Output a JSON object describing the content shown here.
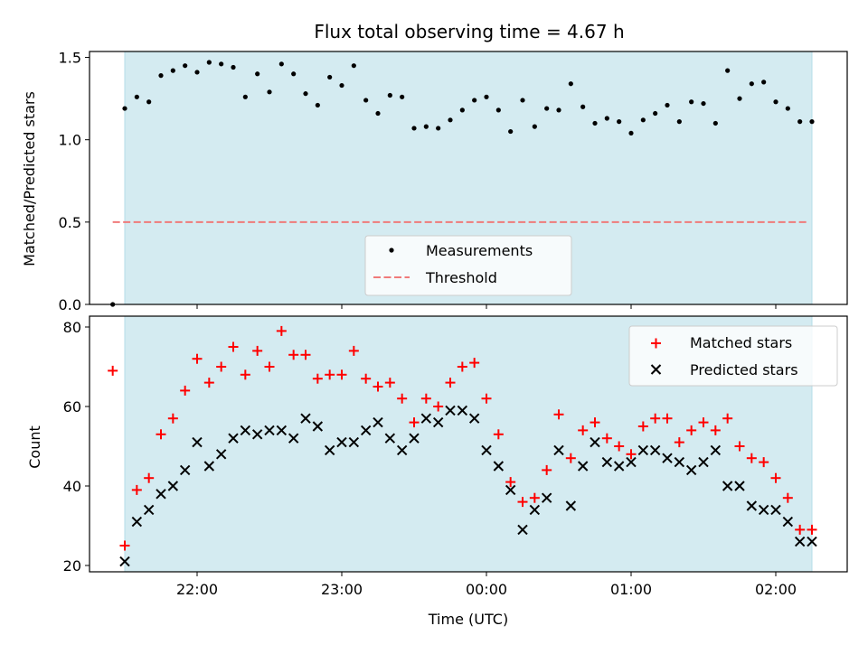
{
  "chart_data": [
    {
      "type": "scatter",
      "title": "Flux total observing time = 4.67 h",
      "ylabel": "Matched/Predicted stars",
      "xlabel": "",
      "ylim": [
        0,
        1.55
      ],
      "yticks": [
        "0.0",
        "0.5",
        "1.0",
        "1.5"
      ],
      "shaded_span": [
        "21:30",
        "02:15"
      ],
      "legend_position": "lower-center",
      "threshold": {
        "name": "Threshold",
        "value": 0.5,
        "color": "#f07a7a",
        "style": "dashed",
        "x_range": [
          "21:25",
          "02:13"
        ]
      },
      "series": [
        {
          "name": "Measurements",
          "color": "#000000",
          "marker": "dot",
          "x": [
            "21:25",
            "21:30",
            "21:35",
            "21:40",
            "21:45",
            "21:50",
            "21:55",
            "22:00",
            "22:05",
            "22:10",
            "22:15",
            "22:20",
            "22:25",
            "22:30",
            "22:35",
            "22:40",
            "22:45",
            "22:50",
            "22:55",
            "23:00",
            "23:05",
            "23:10",
            "23:15",
            "23:20",
            "23:25",
            "23:30",
            "23:35",
            "23:40",
            "23:45",
            "23:50",
            "23:55",
            "00:00",
            "00:05",
            "00:10",
            "00:15",
            "00:20",
            "00:25",
            "00:30",
            "00:35",
            "00:40",
            "00:45",
            "00:50",
            "00:55",
            "01:00",
            "01:05",
            "01:10",
            "01:15",
            "01:20",
            "01:25",
            "01:30",
            "01:35",
            "01:40",
            "01:45",
            "01:50",
            "01:55",
            "02:00",
            "02:05",
            "02:10",
            "02:15"
          ],
          "y": [
            0.0,
            1.19,
            1.26,
            1.23,
            1.39,
            1.42,
            1.45,
            1.41,
            1.47,
            1.46,
            1.44,
            1.26,
            1.4,
            1.29,
            1.46,
            1.4,
            1.28,
            1.21,
            1.38,
            1.33,
            1.45,
            1.24,
            1.16,
            1.27,
            1.26,
            1.07,
            1.08,
            1.07,
            1.12,
            1.18,
            1.24,
            1.26,
            1.18,
            1.05,
            1.24,
            1.08,
            1.19,
            1.18,
            1.34,
            1.2,
            1.1,
            1.13,
            1.11,
            1.04,
            1.12,
            1.16,
            1.21,
            1.11,
            1.23,
            1.22,
            1.1,
            1.42,
            1.25,
            1.34,
            1.35,
            1.23,
            1.19,
            1.11,
            1.11
          ]
        }
      ]
    },
    {
      "type": "scatter",
      "title": "",
      "ylabel": "Count",
      "xlabel": "Time (UTC)",
      "ylim": [
        18,
        82
      ],
      "yticks": [
        "20",
        "40",
        "60",
        "80"
      ],
      "xticks": [
        "22:00",
        "23:00",
        "00:00",
        "01:00",
        "02:00"
      ],
      "shaded_span": [
        "21:30",
        "02:15"
      ],
      "legend_position": "upper-right",
      "series": [
        {
          "name": "Matched stars",
          "color": "#ff0000",
          "marker": "plus",
          "x": [
            "21:25",
            "21:30",
            "21:35",
            "21:40",
            "21:45",
            "21:50",
            "21:55",
            "22:00",
            "22:05",
            "22:10",
            "22:15",
            "22:20",
            "22:25",
            "22:30",
            "22:35",
            "22:40",
            "22:45",
            "22:50",
            "22:55",
            "23:00",
            "23:05",
            "23:10",
            "23:15",
            "23:20",
            "23:25",
            "23:30",
            "23:35",
            "23:40",
            "23:45",
            "23:50",
            "23:55",
            "00:00",
            "00:05",
            "00:10",
            "00:15",
            "00:20",
            "00:25",
            "00:30",
            "00:35",
            "00:40",
            "00:45",
            "00:50",
            "00:55",
            "01:00",
            "01:05",
            "01:10",
            "01:15",
            "01:20",
            "01:25",
            "01:30",
            "01:35",
            "01:40",
            "01:45",
            "01:50",
            "01:55",
            "02:00",
            "02:05",
            "02:10",
            "02:15"
          ],
          "y": [
            69,
            25,
            39,
            42,
            53,
            57,
            64,
            72,
            66,
            70,
            75,
            68,
            74,
            70,
            79,
            73,
            73,
            67,
            68,
            68,
            74,
            67,
            65,
            66,
            62,
            56,
            62,
            60,
            66,
            70,
            71,
            62,
            53,
            41,
            36,
            37,
            44,
            58,
            47,
            54,
            56,
            52,
            50,
            48,
            55,
            57,
            57,
            51,
            54,
            56,
            54,
            57,
            50,
            47,
            46,
            42,
            37,
            29,
            29
          ]
        },
        {
          "name": "Predicted stars",
          "color": "#000000",
          "marker": "x",
          "x": [
            "21:30",
            "21:35",
            "21:40",
            "21:45",
            "21:50",
            "21:55",
            "22:00",
            "22:05",
            "22:10",
            "22:15",
            "22:20",
            "22:25",
            "22:30",
            "22:35",
            "22:40",
            "22:45",
            "22:50",
            "22:55",
            "23:00",
            "23:05",
            "23:10",
            "23:15",
            "23:20",
            "23:25",
            "23:30",
            "23:35",
            "23:40",
            "23:45",
            "23:50",
            "23:55",
            "00:00",
            "00:05",
            "00:10",
            "00:15",
            "00:20",
            "00:25",
            "00:30",
            "00:35",
            "00:40",
            "00:45",
            "00:50",
            "00:55",
            "01:00",
            "01:05",
            "01:10",
            "01:15",
            "01:20",
            "01:25",
            "01:30",
            "01:35",
            "01:40",
            "01:45",
            "01:50",
            "01:55",
            "02:00",
            "02:05",
            "02:10",
            "02:15"
          ],
          "y": [
            21,
            31,
            34,
            38,
            40,
            44,
            51,
            45,
            48,
            52,
            54,
            53,
            54,
            54,
            52,
            57,
            55,
            49,
            51,
            51,
            54,
            56,
            52,
            49,
            52,
            57,
            56,
            59,
            59,
            57,
            49,
            45,
            39,
            29,
            34,
            37,
            49,
            35,
            45,
            51,
            46,
            45,
            46,
            49,
            49,
            47,
            46,
            44,
            46,
            49,
            40,
            40,
            35,
            34,
            34,
            31,
            26,
            26
          ]
        }
      ]
    }
  ],
  "colors": {
    "span": "#d4ebf1",
    "span_edge": "#b4dde8"
  }
}
